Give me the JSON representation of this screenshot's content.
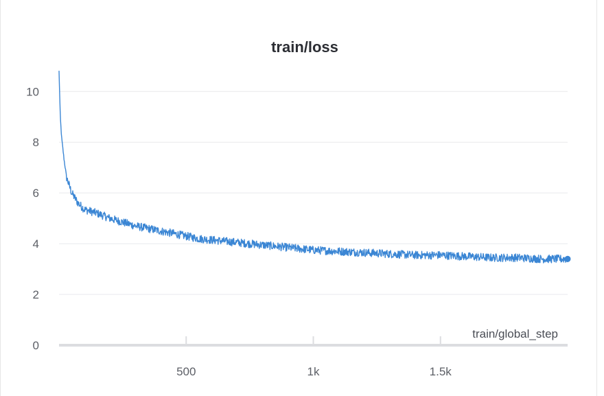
{
  "chart_data": {
    "type": "line",
    "title": "train/loss",
    "xlabel": "train/global_step",
    "ylabel": "",
    "xlim": [
      0,
      2000
    ],
    "ylim": [
      0,
      10.9
    ],
    "grid": true,
    "x_ticks": [
      500,
      1000,
      1500
    ],
    "x_tick_labels": [
      "500",
      "1k",
      "1.5k"
    ],
    "y_ticks": [
      0,
      2,
      4,
      6,
      8,
      10
    ],
    "y_tick_labels": [
      "0",
      "2",
      "4",
      "6",
      "8",
      "10"
    ],
    "line_color": "#3b86d4",
    "series": [
      {
        "name": "",
        "x": [
          0,
          5,
          10,
          20,
          30,
          40,
          50,
          75,
          100,
          150,
          200,
          250,
          300,
          350,
          400,
          450,
          500,
          550,
          600,
          650,
          700,
          750,
          800,
          850,
          900,
          950,
          1000,
          1100,
          1200,
          1300,
          1400,
          1500,
          1600,
          1700,
          1800,
          1900,
          2000
        ],
        "y": [
          10.8,
          9.0,
          8.2,
          7.3,
          6.6,
          6.3,
          6.0,
          5.6,
          5.35,
          5.2,
          5.0,
          4.85,
          4.7,
          4.6,
          4.5,
          4.4,
          4.3,
          4.2,
          4.15,
          4.1,
          4.05,
          4.0,
          3.95,
          3.9,
          3.85,
          3.8,
          3.75,
          3.7,
          3.65,
          3.6,
          3.55,
          3.55,
          3.5,
          3.45,
          3.45,
          3.4,
          3.4
        ]
      }
    ]
  }
}
